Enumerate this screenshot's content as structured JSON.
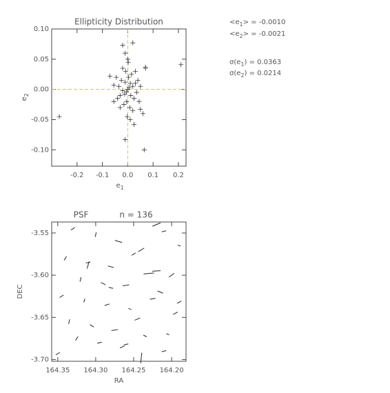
{
  "chart_data": [
    {
      "type": "scatter",
      "title": "Ellipticity Distribution",
      "xlabel": "e",
      "xlabel_sub": "1",
      "ylabel": "e",
      "ylabel_sub": "2",
      "xlim": [
        -0.3,
        0.23
      ],
      "ylim": [
        -0.127,
        0.1
      ],
      "xticks": [
        -0.2,
        -0.1,
        {
          "value": 0,
          "label": "0.0"
        },
        0.1,
        0.2
      ],
      "yticks": [
        {
          "value": 0.1,
          "label": "0.10"
        },
        0.05,
        {
          "value": 0,
          "label": "0.00"
        },
        -0.05,
        {
          "value": -0.1,
          "label": "-0.10"
        }
      ],
      "vline": 0,
      "hline": 0,
      "ref_color": "#d8c060",
      "color": "#333333",
      "x": [
        0,
        0.005,
        -0.005,
        0.01,
        -0.01,
        0.012,
        -0.012,
        0.02,
        -0.02,
        0.003,
        -0.004,
        0.025,
        -0.025,
        0.03,
        -0.03,
        0.015,
        -0.015,
        0.035,
        -0.035,
        0.008,
        -0.008,
        0.04,
        -0.04,
        0.02,
        -0.02,
        0.045,
        -0.045,
        0.03,
        -0.03,
        0.05,
        0.002,
        -0.002,
        0.01,
        -0.27,
        -0.02,
        0.02,
        0.07,
        0.07,
        0.21,
        -0.07,
        0.065,
        -0.01,
        0.025,
        0.06,
        0.05,
        -0.055,
        -0.055,
        -0.01,
        0
      ],
      "y": [
        0,
        0.003,
        -0.004,
        0.01,
        0.012,
        -0.01,
        -0.008,
        0.005,
        -0.002,
        0.02,
        -0.02,
        -0.015,
        0.015,
        0.01,
        -0.01,
        0.025,
        -0.025,
        -0.005,
        0.005,
        -0.03,
        0.03,
        0.015,
        -0.015,
        -0.035,
        0.035,
        -0.02,
        0.02,
        0.03,
        -0.03,
        0.005,
        0.045,
        -0.045,
        -0.05,
        -0.045,
        0.073,
        0.077,
        0.037,
        0.035,
        0.041,
        0.022,
        -0.1,
        -0.083,
        -0.058,
        -0.04,
        -0.033,
        0.007,
        -0.02,
        0.06,
        0.05
      ]
    },
    {
      "type": "whisker",
      "title": "PSF",
      "subtitle": "n = 136",
      "xlabel": "RA",
      "ylabel": "DEC",
      "xlim": [
        164.358,
        164.181
      ],
      "ylim": [
        -3.702,
        -3.537
      ],
      "xticks": [
        164.35,
        {
          "value": 164.3,
          "label": "164.30"
        },
        164.25,
        {
          "value": 164.2,
          "label": "164.20"
        }
      ],
      "yticks": [
        -3.55,
        {
          "value": -3.6,
          "label": "-3.60"
        },
        -3.65,
        {
          "value": -3.7,
          "label": "-3.70"
        }
      ],
      "color": "#222222",
      "x": [
        164.33,
        164.3,
        164.27,
        164.24,
        164.21,
        164.19,
        164.34,
        164.31,
        164.28,
        164.25,
        164.22,
        164.2,
        164.32,
        164.29,
        164.26,
        164.23,
        164.215,
        164.345,
        164.315,
        164.285,
        164.255,
        164.225,
        164.195,
        164.335,
        164.305,
        164.275,
        164.245,
        164.205,
        164.325,
        164.295,
        164.265,
        164.235,
        164.21,
        164.35,
        164.24,
        164.22,
        164.28,
        164.31,
        164.19,
        164.26
      ],
      "y": [
        -3.545,
        -3.552,
        -3.56,
        -3.57,
        -3.548,
        -3.565,
        -3.58,
        -3.585,
        -3.59,
        -3.575,
        -3.595,
        -3.6,
        -3.605,
        -3.61,
        -3.612,
        -3.598,
        -3.62,
        -3.625,
        -3.63,
        -3.635,
        -3.64,
        -3.628,
        -3.645,
        -3.655,
        -3.66,
        -3.665,
        -3.652,
        -3.67,
        -3.675,
        -3.68,
        -3.685,
        -3.672,
        -3.69,
        -3.693,
        -3.698,
        -3.54,
        -3.615,
        -3.588,
        -3.632,
        -3.682
      ],
      "e1": [
        0.01,
        -0.02,
        0.03,
        0.015,
        0.02,
        0.01,
        -0.01,
        0.02,
        0.025,
        0.01,
        0.04,
        0.01,
        -0.02,
        0.015,
        0.03,
        0.05,
        0.02,
        0.01,
        -0.015,
        0.02,
        0.01,
        0.025,
        0.015,
        -0.02,
        0.01,
        0.03,
        0.02,
        0.01,
        -0.01,
        0.02,
        0.015,
        0.01,
        0.02,
        0.01,
        -0.05,
        0.03,
        0.02,
        -0.03,
        0.01,
        0.02
      ],
      "e2": [
        0.02,
        0.01,
        -0.02,
        0.03,
        0.01,
        -0.01,
        0.02,
        0.01,
        -0.015,
        0.02,
        0.005,
        0.03,
        0.01,
        -0.02,
        0.01,
        0.01,
        -0.02,
        0.02,
        0.01,
        0.015,
        -0.01,
        0.01,
        0.02,
        0.01,
        -0.02,
        0.01,
        0.02,
        -0.01,
        0.02,
        0.01,
        0.02,
        -0.015,
        0.01,
        0.02,
        0.01,
        0.03,
        -0.01,
        0.02,
        0.02,
        0.01
      ]
    }
  ],
  "stats": [
    {
      "pre": "<e",
      "sub": "1",
      "post": "> = -0.0010"
    },
    {
      "pre": "<e",
      "sub": "2",
      "post": "> = -0.0021"
    },
    {
      "pre": "σ(e",
      "sub": "1",
      "post": ") = 0.0363"
    },
    {
      "pre": "σ(e",
      "sub": "2",
      "post": ") = 0.0214"
    }
  ]
}
